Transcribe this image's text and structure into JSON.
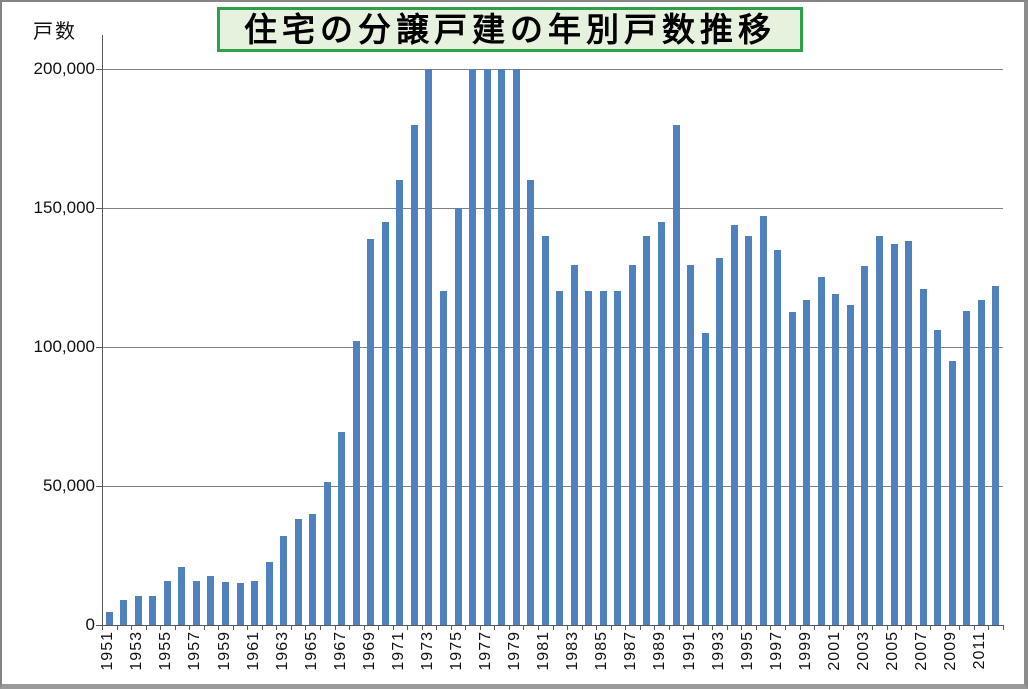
{
  "chart_data": {
    "type": "bar",
    "title": "住宅の分譲戸建の年別戸数推移",
    "ylabel": "戸数",
    "xlabel": "",
    "ylim": [
      0,
      200000
    ],
    "grid": true,
    "legend": "none",
    "note_clipped_years": [
      1973,
      1976,
      1977,
      1978,
      1979
    ],
    "x": [
      1951,
      1952,
      1953,
      1954,
      1955,
      1956,
      1957,
      1958,
      1959,
      1960,
      1961,
      1962,
      1963,
      1964,
      1965,
      1966,
      1967,
      1968,
      1969,
      1970,
      1971,
      1972,
      1973,
      1974,
      1975,
      1976,
      1977,
      1978,
      1979,
      1980,
      1981,
      1982,
      1983,
      1984,
      1985,
      1986,
      1987,
      1988,
      1989,
      1990,
      1991,
      1992,
      1993,
      1994,
      1995,
      1996,
      1997,
      1998,
      1999,
      2000,
      2001,
      2002,
      2003,
      2004,
      2005,
      2006,
      2007,
      2008,
      2009,
      2010,
      2011,
      2012
    ],
    "values": [
      4500,
      9000,
      10500,
      10500,
      16000,
      21000,
      16000,
      17500,
      15500,
      15000,
      16000,
      22500,
      32000,
      38000,
      40000,
      51500,
      69500,
      102000,
      139000,
      145000,
      160000,
      180000,
      200000,
      120000,
      150000,
      200000,
      200000,
      200000,
      200000,
      160000,
      140000,
      120000,
      129500,
      120000,
      120000,
      120000,
      129500,
      140000,
      145000,
      180000,
      129500,
      105000,
      132000,
      144000,
      140000,
      147000,
      135000,
      112500,
      117000,
      125000,
      119000,
      115000,
      129000,
      140000,
      137000,
      138000,
      121000,
      106000,
      95000,
      113000,
      117000,
      122000
    ],
    "y_tick_labels": [
      "0",
      "50,000",
      "100,000",
      "150,000",
      "200,000"
    ],
    "x_tick_labels": [
      "1951",
      "1953",
      "1955",
      "1957",
      "1959",
      "1961",
      "1963",
      "1965",
      "1967",
      "1969",
      "1971",
      "1973",
      "1975",
      "1977",
      "1979",
      "1981",
      "1983",
      "1985",
      "1987",
      "1989",
      "1991",
      "1993",
      "1995",
      "1997",
      "1999",
      "2001",
      "2003",
      "2005",
      "2007",
      "2009",
      "2011"
    ]
  },
  "colors": {
    "bar": "#4f81bd",
    "grid": "#808080",
    "axis": "#595959",
    "title_border": "#2da04b",
    "title_bg": "#e7f2de",
    "text": "#111111"
  }
}
